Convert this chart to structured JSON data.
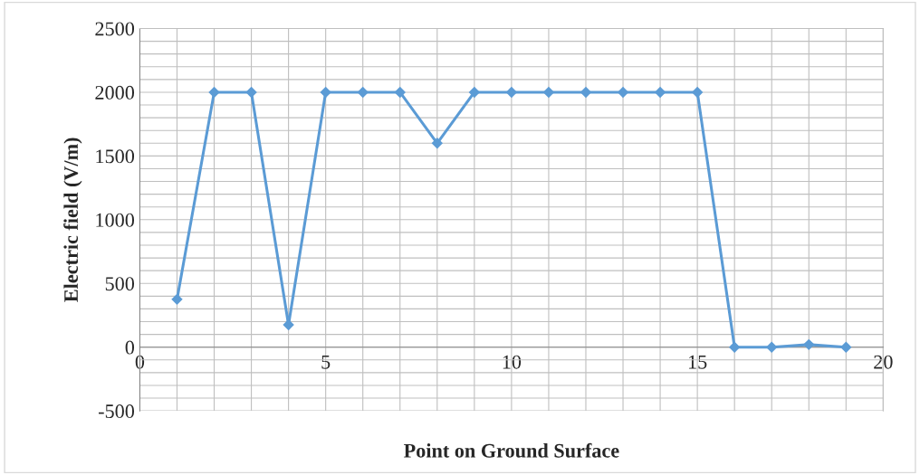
{
  "chart_data": {
    "type": "line",
    "xlabel": "Point on Ground Surface",
    "ylabel": "Electric field (V/m)",
    "x": [
      1,
      2,
      3,
      4,
      5,
      6,
      7,
      8,
      9,
      10,
      11,
      12,
      13,
      14,
      15,
      16,
      17,
      18,
      19
    ],
    "series": [
      {
        "color": "#5b9bd5",
        "values": [
          375,
          2000,
          2000,
          175,
          2000,
          2000,
          2000,
          1600,
          2000,
          2000,
          2000,
          2000,
          2000,
          2000,
          2000,
          0,
          0,
          20,
          0
        ]
      }
    ],
    "xlim": [
      0,
      20
    ],
    "xticks": [
      0,
      {
        "value": 1,
        "label": null
      },
      {
        "value": 2,
        "label": null
      },
      {
        "value": 3,
        "label": null
      },
      {
        "value": 4,
        "label": null
      },
      5,
      {
        "value": 6,
        "label": null
      },
      {
        "value": 7,
        "label": null
      },
      {
        "value": 8,
        "label": null
      },
      {
        "value": 9,
        "label": null
      },
      10,
      {
        "value": 11,
        "label": null
      },
      {
        "value": 12,
        "label": null
      },
      {
        "value": 13,
        "label": null
      },
      {
        "value": 14,
        "label": null
      },
      15,
      {
        "value": 16,
        "label": null
      },
      {
        "value": 17,
        "label": null
      },
      {
        "value": 18,
        "label": null
      },
      {
        "value": 19,
        "label": null
      },
      20
    ],
    "ylim": [
      -500,
      2500
    ],
    "yticks": [
      -500,
      {
        "value": -400,
        "label": null
      },
      {
        "value": -300,
        "label": null
      },
      {
        "value": -200,
        "label": null
      },
      {
        "value": -100,
        "label": null
      },
      0,
      {
        "value": 100,
        "label": null
      },
      {
        "value": 200,
        "label": null
      },
      {
        "value": 300,
        "label": null
      },
      {
        "value": 400,
        "label": null
      },
      500,
      {
        "value": 600,
        "label": null
      },
      {
        "value": 700,
        "label": null
      },
      {
        "value": 800,
        "label": null
      },
      {
        "value": 900,
        "label": null
      },
      1000,
      {
        "value": 1100,
        "label": null
      },
      {
        "value": 1200,
        "label": null
      },
      {
        "value": 1300,
        "label": null
      },
      {
        "value": 1400,
        "label": null
      },
      1500,
      {
        "value": 1600,
        "label": null
      },
      {
        "value": 1700,
        "label": null
      },
      {
        "value": 1800,
        "label": null
      },
      {
        "value": 1900,
        "label": null
      },
      2000,
      {
        "value": 2100,
        "label": null
      },
      {
        "value": 2200,
        "label": null
      },
      {
        "value": 2300,
        "label": null
      },
      {
        "value": 2400,
        "label": null
      },
      2500
    ],
    "grid": true,
    "marker": "diamond",
    "line_style": "solid"
  }
}
